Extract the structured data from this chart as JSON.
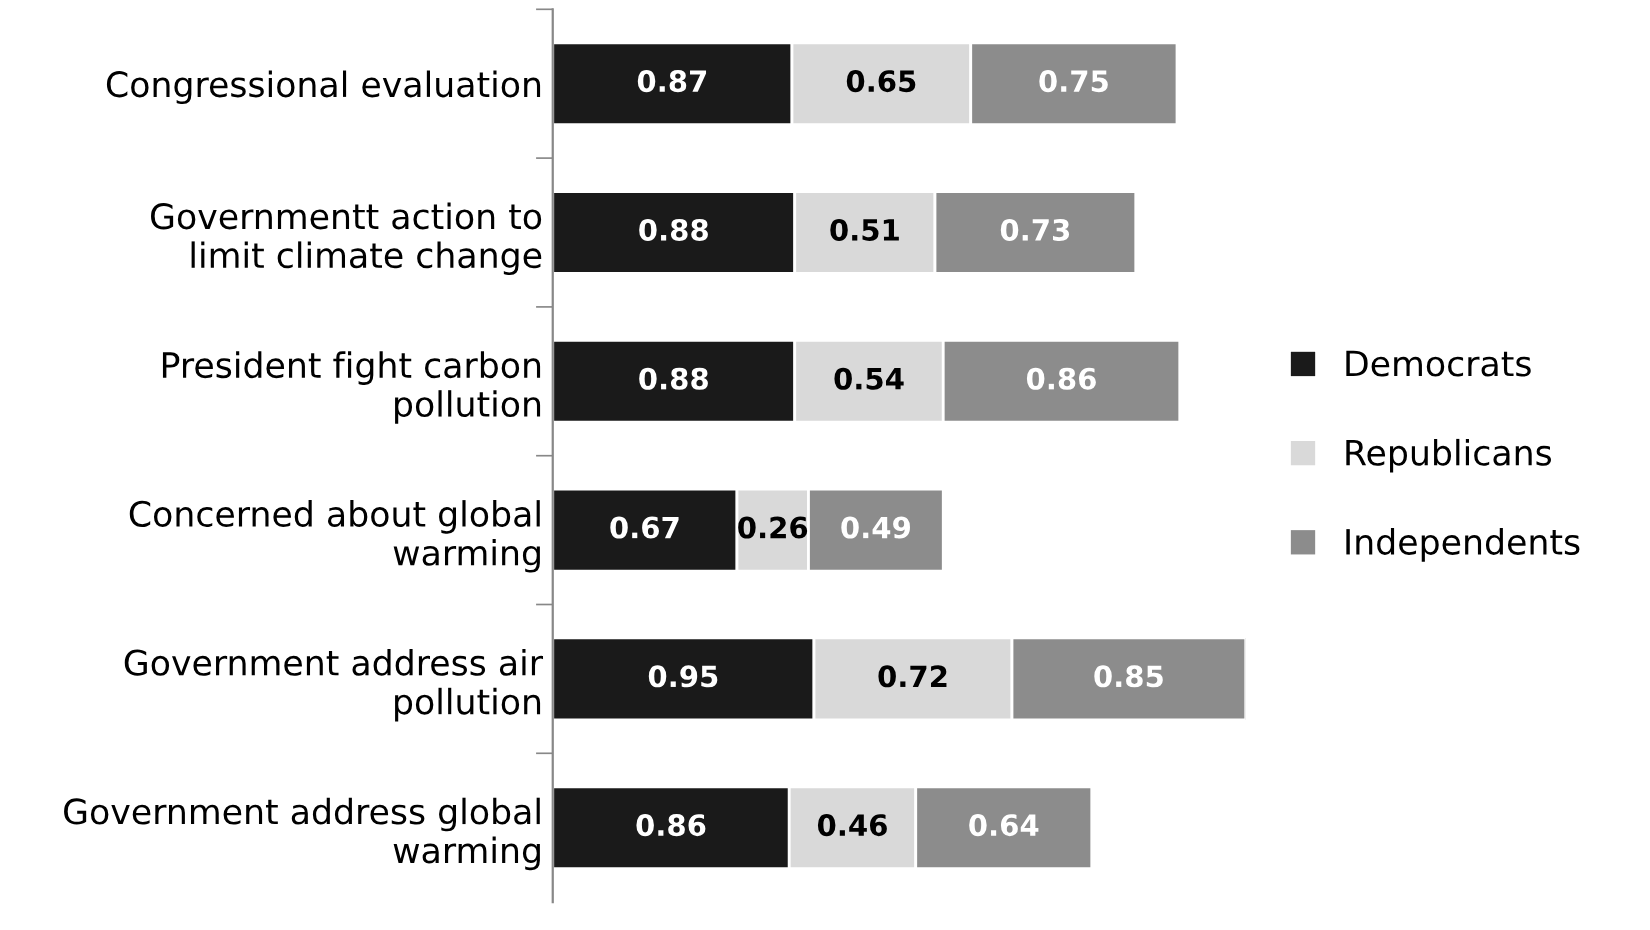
{
  "chart_data": {
    "type": "bar",
    "orientation": "horizontal",
    "stacked": true,
    "data_labels": true,
    "legend": "right",
    "grid": false,
    "tick_labels": "y",
    "categories": [
      "Congressional evaluation",
      "Governmentt action to limit climate change",
      "President fight carbon pollution",
      "Concerned about global warming",
      "Government address air pollution",
      "Government address global warming"
    ],
    "series": [
      {
        "name": "Democrats",
        "color": "#1a1a1a",
        "values": [
          0.87,
          0.88,
          0.88,
          0.67,
          0.95,
          0.86
        ]
      },
      {
        "name": "Republicans",
        "color": "#d9d9d9",
        "values": [
          0.65,
          0.51,
          0.54,
          0.26,
          0.72,
          0.46
        ]
      },
      {
        "name": "Independents",
        "color": "#8c8c8c",
        "values": [
          0.75,
          0.73,
          0.86,
          0.49,
          0.85,
          0.64
        ]
      }
    ]
  }
}
